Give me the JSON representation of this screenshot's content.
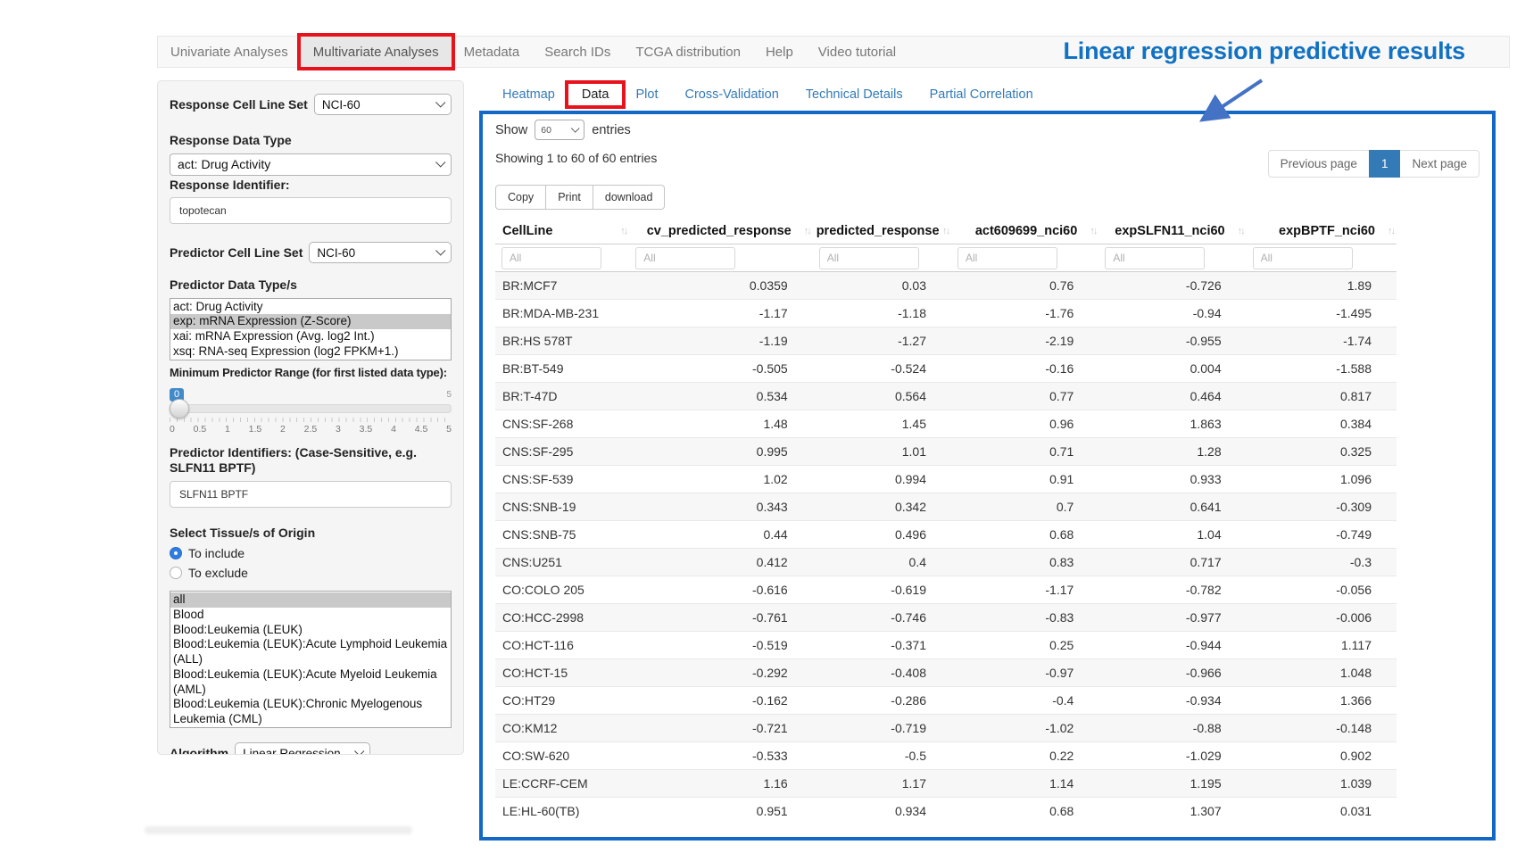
{
  "colors": {
    "link_blue": "#337ab7",
    "annotation_red": "#e8121d",
    "annotation_blue": "#1268c4",
    "title_blue": "#1171c2",
    "arrow_blue": "#4472c4",
    "pagination_active_bg": "#337ab7",
    "selected_option_bg": "#c9c9c9",
    "slider_badge_bg": "#428bca",
    "navbar_bg": "#f8f8f8",
    "row_stripe": "#f7f7f7"
  },
  "annotation": {
    "title": "Linear regression predictive results"
  },
  "navbar": {
    "items": [
      {
        "label": "Univariate Analyses",
        "active": false,
        "highlighted": false
      },
      {
        "label": "Multivariate Analyses",
        "active": true,
        "highlighted": true
      },
      {
        "label": "Metadata",
        "active": false,
        "highlighted": false
      },
      {
        "label": "Search IDs",
        "active": false,
        "highlighted": false
      },
      {
        "label": "TCGA distribution",
        "active": false,
        "highlighted": false
      },
      {
        "label": "Help",
        "active": false,
        "highlighted": false
      },
      {
        "label": "Video tutorial",
        "active": false,
        "highlighted": false
      }
    ]
  },
  "sidebar": {
    "response_cell_line_set": {
      "label": "Response Cell Line Set",
      "value": "NCI-60"
    },
    "response_data_type": {
      "label": "Response Data Type",
      "value": "act: Drug Activity"
    },
    "response_identifier": {
      "label": "Response Identifier:",
      "value": "topotecan"
    },
    "predictor_cell_line_set": {
      "label": "Predictor Cell Line Set",
      "value": "NCI-60"
    },
    "predictor_data_types": {
      "label": "Predictor Data Type/s",
      "options": [
        "act: Drug Activity",
        "exp: mRNA Expression (Z-Score)",
        "xai: mRNA Expression (Avg. log2 Int.)",
        "xsq: RNA-seq Expression (log2 FPKM+1.)"
      ],
      "selected_index": 1
    },
    "min_predictor_range": {
      "label": "Minimum Predictor Range (for first listed data type):",
      "value": "0",
      "max_label": "5",
      "ticks": [
        "0",
        "0.5",
        "1",
        "1.5",
        "2",
        "2.5",
        "3",
        "3.5",
        "4",
        "4.5",
        "5"
      ]
    },
    "predictor_identifiers": {
      "label": "Predictor Identifiers: (Case-Sensitive, e.g. SLFN11 BPTF)",
      "value": "SLFN11 BPTF"
    },
    "tissue_section": {
      "label": "Select Tissue/s of Origin",
      "radios": [
        {
          "label": "To include",
          "selected": true
        },
        {
          "label": "To exclude",
          "selected": false
        }
      ],
      "options": [
        "all",
        "Blood",
        "Blood:Leukemia (LEUK)",
        "Blood:Leukemia (LEUK):Acute Lymphoid Leukemia (ALL)",
        "Blood:Leukemia (LEUK):Acute Myeloid Leukemia (AML)",
        "Blood:Leukemia (LEUK):Chronic Myelogenous Leukemia (CML)"
      ],
      "selected_index": 0
    },
    "algorithm": {
      "label": "Algorithm",
      "value": "Linear Regression"
    }
  },
  "tabs": [
    {
      "label": "Heatmap",
      "active": false,
      "highlighted": false
    },
    {
      "label": "Data",
      "active": true,
      "highlighted": true
    },
    {
      "label": "Plot",
      "active": false,
      "highlighted": false
    },
    {
      "label": "Cross-Validation",
      "active": false,
      "highlighted": false
    },
    {
      "label": "Technical Details",
      "active": false,
      "highlighted": false
    },
    {
      "label": "Partial Correlation",
      "active": false,
      "highlighted": false
    }
  ],
  "datatable": {
    "show_label": "Show",
    "show_value": "60",
    "entries_label": "entries",
    "info": "Showing 1 to 60 of 60 entries",
    "pagination": {
      "previous": "Previous page",
      "current": "1",
      "next": "Next page"
    },
    "export_buttons": [
      "Copy",
      "Print",
      "download"
    ],
    "filter_placeholder": "All",
    "columns": [
      "CellLine",
      "cv_predicted_response",
      "predicted_response",
      "act609699_nci60",
      "expSLFN11_nci60",
      "expBPTF_nci60"
    ],
    "rows": [
      [
        "BR:MCF7",
        "0.0359",
        "0.03",
        "0.76",
        "-0.726",
        "1.89"
      ],
      [
        "BR:MDA-MB-231",
        "-1.17",
        "-1.18",
        "-1.76",
        "-0.94",
        "-1.495"
      ],
      [
        "BR:HS 578T",
        "-1.19",
        "-1.27",
        "-2.19",
        "-0.955",
        "-1.74"
      ],
      [
        "BR:BT-549",
        "-0.505",
        "-0.524",
        "-0.16",
        "0.004",
        "-1.588"
      ],
      [
        "BR:T-47D",
        "0.534",
        "0.564",
        "0.77",
        "0.464",
        "0.817"
      ],
      [
        "CNS:SF-268",
        "1.48",
        "1.45",
        "0.96",
        "1.863",
        "0.384"
      ],
      [
        "CNS:SF-295",
        "0.995",
        "1.01",
        "0.71",
        "1.28",
        "0.325"
      ],
      [
        "CNS:SF-539",
        "1.02",
        "0.994",
        "0.91",
        "0.933",
        "1.096"
      ],
      [
        "CNS:SNB-19",
        "0.343",
        "0.342",
        "0.7",
        "0.641",
        "-0.309"
      ],
      [
        "CNS:SNB-75",
        "0.44",
        "0.496",
        "0.68",
        "1.04",
        "-0.749"
      ],
      [
        "CNS:U251",
        "0.412",
        "0.4",
        "0.83",
        "0.717",
        "-0.3"
      ],
      [
        "CO:COLO 205",
        "-0.616",
        "-0.619",
        "-1.17",
        "-0.782",
        "-0.056"
      ],
      [
        "CO:HCC-2998",
        "-0.761",
        "-0.746",
        "-0.83",
        "-0.977",
        "-0.006"
      ],
      [
        "CO:HCT-116",
        "-0.519",
        "-0.371",
        "0.25",
        "-0.944",
        "1.117"
      ],
      [
        "CO:HCT-15",
        "-0.292",
        "-0.408",
        "-0.97",
        "-0.966",
        "1.048"
      ],
      [
        "CO:HT29",
        "-0.162",
        "-0.286",
        "-0.4",
        "-0.934",
        "1.366"
      ],
      [
        "CO:KM12",
        "-0.721",
        "-0.719",
        "-1.02",
        "-0.88",
        "-0.148"
      ],
      [
        "CO:SW-620",
        "-0.533",
        "-0.5",
        "0.22",
        "-1.029",
        "0.902"
      ],
      [
        "LE:CCRF-CEM",
        "1.16",
        "1.17",
        "1.14",
        "1.195",
        "1.039"
      ],
      [
        "LE:HL-60(TB)",
        "0.951",
        "0.934",
        "0.68",
        "1.307",
        "0.031"
      ]
    ]
  }
}
